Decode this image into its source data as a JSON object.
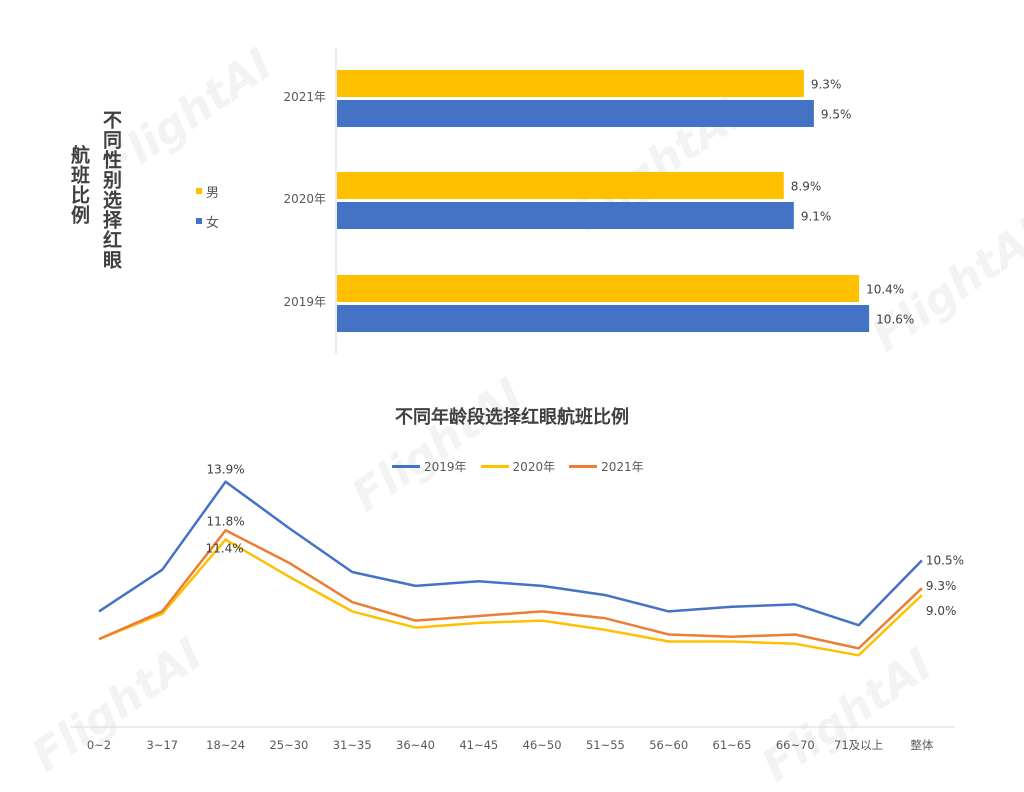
{
  "watermark": "FlightAI",
  "colors": {
    "male": "#FFC000",
    "female": "#4472C4",
    "y2019": "#4472C4",
    "y2020": "#FFC000",
    "y2021": "#ED7D31"
  },
  "left_titles": {
    "t1": "不同性别选择红眼",
    "t2": "航班比例"
  },
  "chart_data": [
    {
      "type": "bar",
      "orientation": "horizontal",
      "categories": [
        "2021年",
        "2020年",
        "2019年"
      ],
      "series": [
        {
          "name": "男",
          "values": [
            9.3,
            8.9,
            10.4
          ],
          "labels": [
            "9.3%",
            "8.9%",
            "10.4%"
          ]
        },
        {
          "name": "女",
          "values": [
            9.5,
            9.1,
            10.6
          ],
          "labels": [
            "9.5%",
            "9.1%",
            "10.6%"
          ]
        }
      ],
      "legend_position": "left"
    },
    {
      "type": "line",
      "title": "不同年龄段选择红眼航班比例",
      "categories": [
        "0~2",
        "3~17",
        "18~24",
        "25~30",
        "31~35",
        "36~40",
        "41~45",
        "46~50",
        "51~55",
        "56~60",
        "61~65",
        "66~70",
        "71及以上",
        "整体"
      ],
      "series": [
        {
          "name": "2019年",
          "values": [
            8.3,
            10.1,
            13.9,
            11.9,
            10.0,
            9.4,
            9.6,
            9.4,
            9.0,
            8.3,
            8.5,
            8.6,
            7.7,
            10.5
          ]
        },
        {
          "name": "2020年",
          "values": [
            7.1,
            8.2,
            11.4,
            9.8,
            8.3,
            7.6,
            7.8,
            7.9,
            7.5,
            7.0,
            7.0,
            6.9,
            6.4,
            9.0
          ]
        },
        {
          "name": "2021年",
          "values": [
            7.1,
            8.3,
            11.8,
            10.4,
            8.7,
            7.9,
            8.1,
            8.3,
            8.0,
            7.3,
            7.2,
            7.3,
            6.7,
            9.3
          ]
        }
      ],
      "data_labels": [
        {
          "series": 0,
          "index": 2,
          "text": "13.9%"
        },
        {
          "series": 2,
          "index": 2,
          "text": "11.8%"
        },
        {
          "series": 1,
          "index": 2,
          "text": "11.4%"
        },
        {
          "series": 0,
          "index": 13,
          "text": "10.5%"
        },
        {
          "series": 2,
          "index": 13,
          "text": "9.3%"
        },
        {
          "series": 1,
          "index": 13,
          "text": "9.0%"
        }
      ],
      "legend_position": "top"
    }
  ]
}
